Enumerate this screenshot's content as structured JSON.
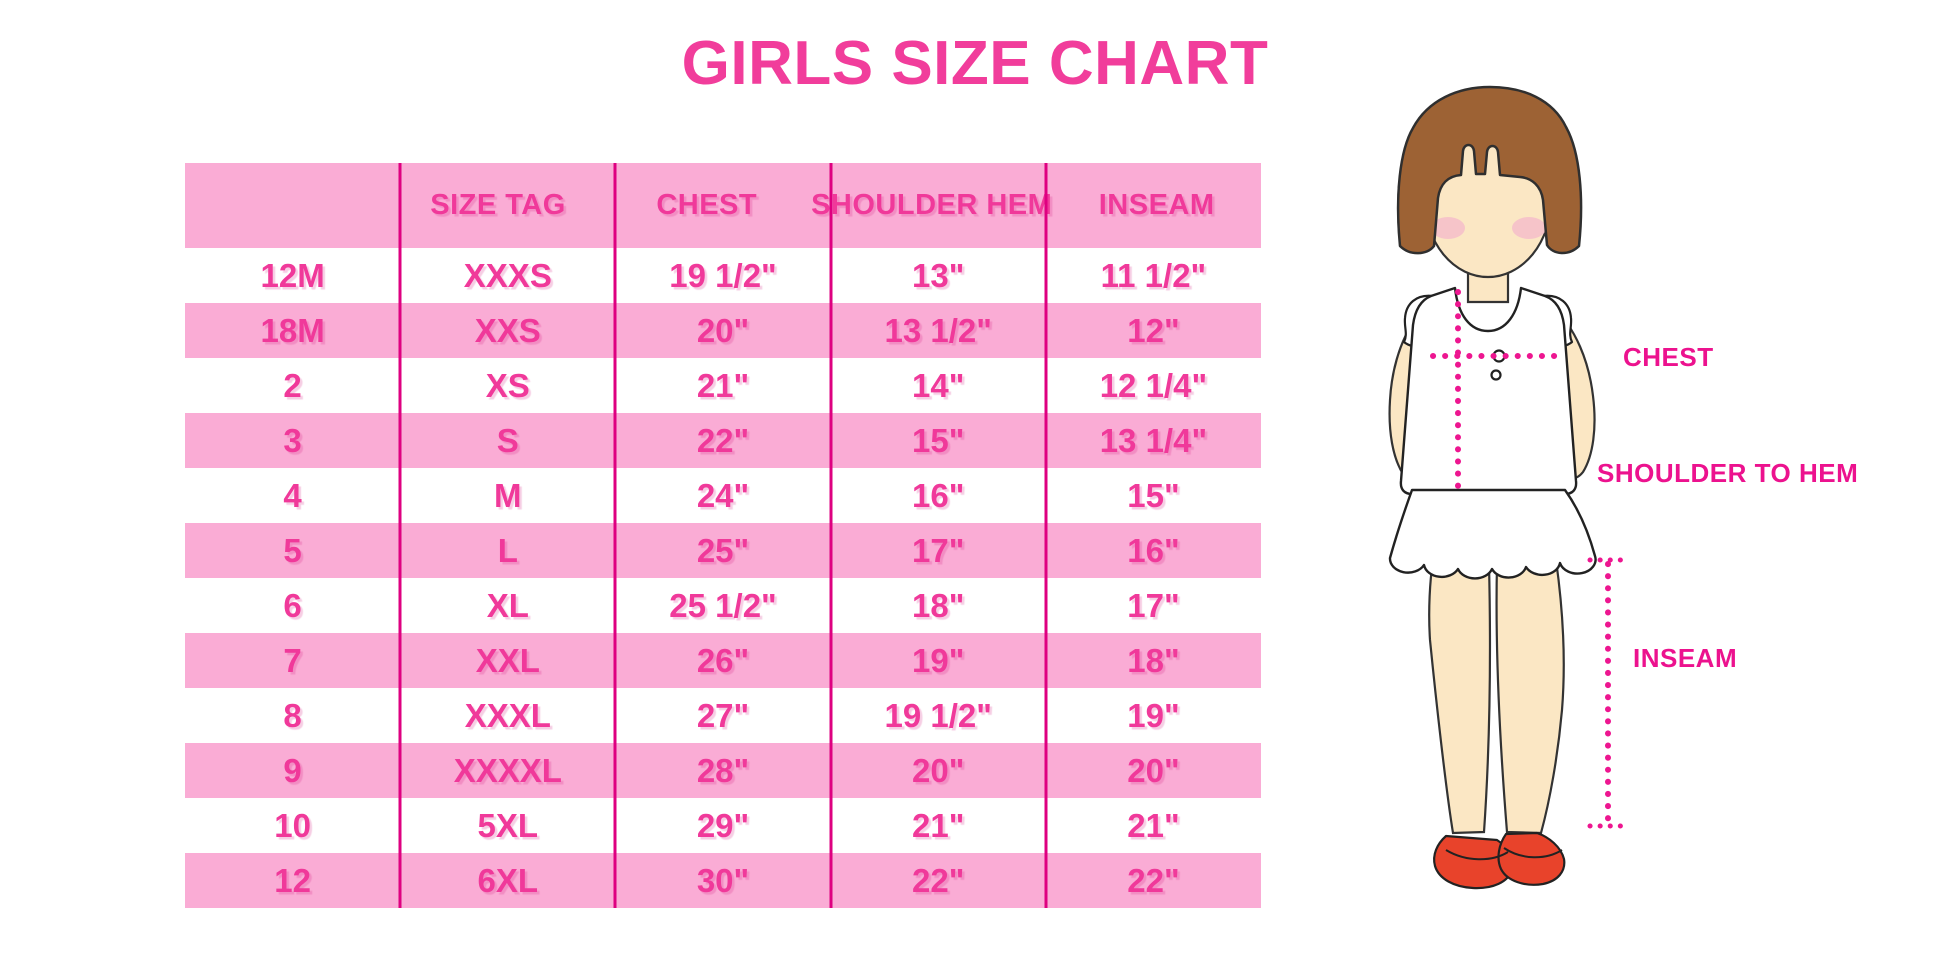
{
  "title": "GIRLS SIZE CHART",
  "chart_data": {
    "type": "table",
    "title": "GIRLS SIZE CHART",
    "columns": [
      "",
      "SIZE TAG",
      "CHEST",
      "SHOULDER HEM",
      "INSEAM"
    ],
    "rows": [
      [
        "12M",
        "XXXS",
        "19 1/2\"",
        "13\"",
        "11 1/2\""
      ],
      [
        "18M",
        "XXS",
        "20\"",
        "13 1/2\"",
        "12\""
      ],
      [
        "2",
        "XS",
        "21\"",
        "14\"",
        "12 1/4\""
      ],
      [
        "3",
        "S",
        "22\"",
        "15\"",
        "13 1/4\""
      ],
      [
        "4",
        "M",
        "24\"",
        "16\"",
        "15\""
      ],
      [
        "5",
        "L",
        "25\"",
        "17\"",
        "16\""
      ],
      [
        "6",
        "XL",
        "25 1/2\"",
        "18\"",
        "17\""
      ],
      [
        "7",
        "XXL",
        "26\"",
        "19\"",
        "18\""
      ],
      [
        "8",
        "XXXL",
        "27\"",
        "19 1/2\"",
        "19\""
      ],
      [
        "9",
        "XXXXL",
        "28\"",
        "20\"",
        "20\""
      ],
      [
        "10",
        "5XL",
        "29\"",
        "21\"",
        "21\""
      ],
      [
        "12",
        "6XL",
        "30\"",
        "22\"",
        "22\""
      ]
    ],
    "layout_hints": {
      "alternating_row_colors": [
        "pink",
        "white"
      ],
      "first_header_cell_empty": true,
      "column_separators": "vertical magenta lines, no horizontal rules"
    }
  },
  "diagram": {
    "labels": {
      "chest": "CHEST",
      "shoulder_to_hem": "SHOULDER TO HEM",
      "inseam": "INSEAM"
    },
    "figure": "illustrated girl with brown bob haircut, white ruffled sleeveless top, scalloped skirt hem, red mary-jane shoes; dotted magenta measurement guides for chest, shoulder-to-hem and inseam"
  },
  "colors": {
    "title_pink": "#F13D9B",
    "table_text": "#F0399A",
    "row_pink": "#FAACD5",
    "separator": "#DE0080",
    "label_magenta": "#EC128E",
    "dotted_line": "#ED1690",
    "hair_brown": "#9D6234",
    "skin": "#FBE7C4",
    "blush": "#F5BBCA",
    "shoe_red": "#E8432B"
  }
}
